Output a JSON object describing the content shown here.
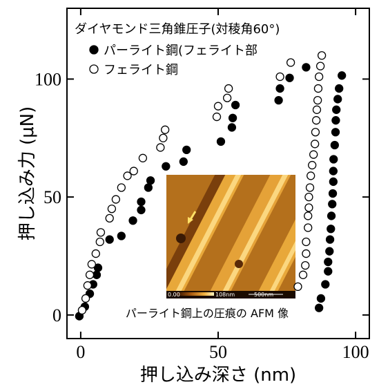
{
  "chart_data": {
    "type": "scatter",
    "xlabel": "押し込み深さ (nm)",
    "ylabel": "押し込み力 (μN)",
    "legend_title": "ダイヤモンド三角錐圧子(対稜角60°)",
    "xlim": [
      -5,
      105
    ],
    "ylim": [
      -10,
      130
    ],
    "xticks": [
      0,
      50,
      100
    ],
    "yticks": [
      0,
      50,
      100
    ],
    "series": [
      {
        "name": "パーライト鋼(フェライト部",
        "color": "#000000",
        "marker": "filled",
        "x": [
          -0.5,
          1.5,
          3.3,
          4.5,
          5.8,
          6.3,
          10.5,
          14.8,
          19,
          22,
          22,
          24.6,
          25.4,
          31,
          37.4,
          38.5,
          51,
          55,
          55.3,
          56.3,
          72,
          72.5,
          76,
          82,
          95,
          94,
          93.5,
          93,
          92.8,
          92.7,
          92.4,
          92,
          91.9,
          91.9,
          91.7,
          91.5,
          91.2,
          91,
          90.7,
          90.5,
          90,
          90,
          89,
          87.4,
          86.7
        ],
        "values": [
          -0.5,
          3.5,
          9,
          13,
          17,
          20,
          32,
          33.5,
          40,
          44.5,
          48,
          54,
          57,
          63,
          65,
          70,
          73.5,
          79.5,
          83.5,
          89,
          91,
          96,
          100.5,
          105,
          101.5,
          96,
          91.5,
          87,
          82.5,
          77.5,
          72,
          66,
          61,
          56.5,
          51.5,
          47,
          42,
          36.5,
          32,
          27,
          22.5,
          18.5,
          13,
          7,
          3
        ]
      },
      {
        "name": "フェライト鋼",
        "color": "#000000",
        "marker": "open",
        "x": [
          0.5,
          1.8,
          2.5,
          3.3,
          4,
          5.5,
          7,
          7.3,
          10.5,
          11.3,
          12.8,
          14.8,
          17,
          19.3,
          22.6,
          29,
          30,
          30.7,
          49.5,
          50,
          53.3,
          53.8,
          72.5,
          76.4,
          87.7,
          87.2,
          86.7,
          86.4,
          86.2,
          85.9,
          85.7,
          85.4,
          85.2,
          84.7,
          84.2,
          83.7,
          83.4,
          83,
          83,
          82.7,
          82.7,
          82,
          82,
          81.7,
          80.9,
          79
        ],
        "values": [
          2,
          7,
          12.5,
          17,
          21.5,
          26,
          31,
          35,
          41,
          45,
          49,
          54,
          59,
          61,
          66.5,
          71,
          75,
          78.5,
          84,
          88.5,
          92,
          96,
          101,
          107,
          110,
          105.5,
          101,
          96,
          91,
          87,
          82.5,
          77.5,
          72.5,
          68,
          63.5,
          59,
          54,
          50,
          45.5,
          42,
          37,
          31,
          26,
          21,
          17,
          12
        ]
      }
    ],
    "inset": {
      "caption": "パーライト鋼上の圧痕の AFM 像",
      "scale_labels": [
        "0.00",
        "108nm",
        "500nm"
      ]
    }
  }
}
